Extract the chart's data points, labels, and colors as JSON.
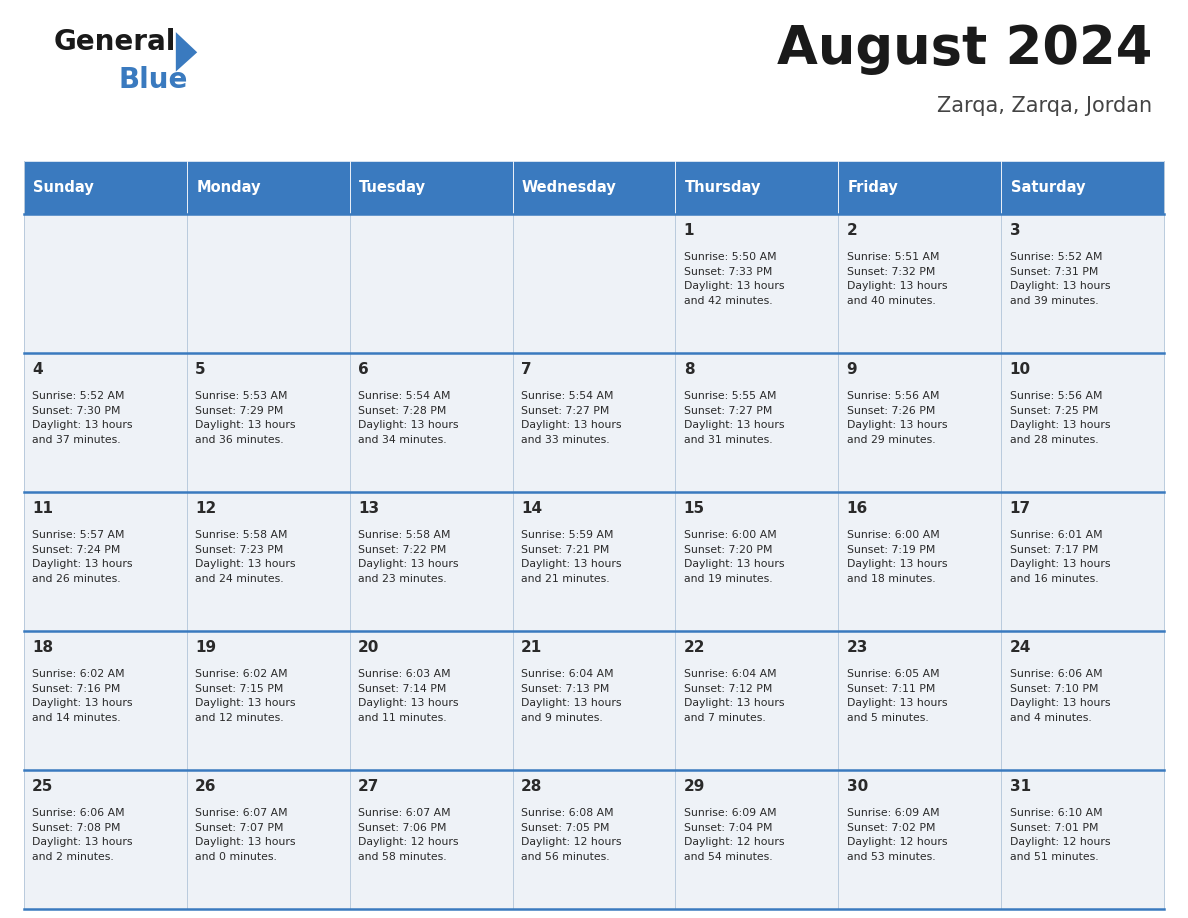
{
  "title": "August 2024",
  "subtitle": "Zarqa, Zarqa, Jordan",
  "header_color": "#3a7abf",
  "header_text_color": "#ffffff",
  "cell_bg_color": "#eef2f7",
  "border_color": "#3a7abf",
  "sep_color": "#b0c4d8",
  "days_of_week": [
    "Sunday",
    "Monday",
    "Tuesday",
    "Wednesday",
    "Thursday",
    "Friday",
    "Saturday"
  ],
  "weeks": [
    [
      {
        "day": null,
        "info": null
      },
      {
        "day": null,
        "info": null
      },
      {
        "day": null,
        "info": null
      },
      {
        "day": null,
        "info": null
      },
      {
        "day": "1",
        "info": "Sunrise: 5:50 AM\nSunset: 7:33 PM\nDaylight: 13 hours\nand 42 minutes."
      },
      {
        "day": "2",
        "info": "Sunrise: 5:51 AM\nSunset: 7:32 PM\nDaylight: 13 hours\nand 40 minutes."
      },
      {
        "day": "3",
        "info": "Sunrise: 5:52 AM\nSunset: 7:31 PM\nDaylight: 13 hours\nand 39 minutes."
      }
    ],
    [
      {
        "day": "4",
        "info": "Sunrise: 5:52 AM\nSunset: 7:30 PM\nDaylight: 13 hours\nand 37 minutes."
      },
      {
        "day": "5",
        "info": "Sunrise: 5:53 AM\nSunset: 7:29 PM\nDaylight: 13 hours\nand 36 minutes."
      },
      {
        "day": "6",
        "info": "Sunrise: 5:54 AM\nSunset: 7:28 PM\nDaylight: 13 hours\nand 34 minutes."
      },
      {
        "day": "7",
        "info": "Sunrise: 5:54 AM\nSunset: 7:27 PM\nDaylight: 13 hours\nand 33 minutes."
      },
      {
        "day": "8",
        "info": "Sunrise: 5:55 AM\nSunset: 7:27 PM\nDaylight: 13 hours\nand 31 minutes."
      },
      {
        "day": "9",
        "info": "Sunrise: 5:56 AM\nSunset: 7:26 PM\nDaylight: 13 hours\nand 29 minutes."
      },
      {
        "day": "10",
        "info": "Sunrise: 5:56 AM\nSunset: 7:25 PM\nDaylight: 13 hours\nand 28 minutes."
      }
    ],
    [
      {
        "day": "11",
        "info": "Sunrise: 5:57 AM\nSunset: 7:24 PM\nDaylight: 13 hours\nand 26 minutes."
      },
      {
        "day": "12",
        "info": "Sunrise: 5:58 AM\nSunset: 7:23 PM\nDaylight: 13 hours\nand 24 minutes."
      },
      {
        "day": "13",
        "info": "Sunrise: 5:58 AM\nSunset: 7:22 PM\nDaylight: 13 hours\nand 23 minutes."
      },
      {
        "day": "14",
        "info": "Sunrise: 5:59 AM\nSunset: 7:21 PM\nDaylight: 13 hours\nand 21 minutes."
      },
      {
        "day": "15",
        "info": "Sunrise: 6:00 AM\nSunset: 7:20 PM\nDaylight: 13 hours\nand 19 minutes."
      },
      {
        "day": "16",
        "info": "Sunrise: 6:00 AM\nSunset: 7:19 PM\nDaylight: 13 hours\nand 18 minutes."
      },
      {
        "day": "17",
        "info": "Sunrise: 6:01 AM\nSunset: 7:17 PM\nDaylight: 13 hours\nand 16 minutes."
      }
    ],
    [
      {
        "day": "18",
        "info": "Sunrise: 6:02 AM\nSunset: 7:16 PM\nDaylight: 13 hours\nand 14 minutes."
      },
      {
        "day": "19",
        "info": "Sunrise: 6:02 AM\nSunset: 7:15 PM\nDaylight: 13 hours\nand 12 minutes."
      },
      {
        "day": "20",
        "info": "Sunrise: 6:03 AM\nSunset: 7:14 PM\nDaylight: 13 hours\nand 11 minutes."
      },
      {
        "day": "21",
        "info": "Sunrise: 6:04 AM\nSunset: 7:13 PM\nDaylight: 13 hours\nand 9 minutes."
      },
      {
        "day": "22",
        "info": "Sunrise: 6:04 AM\nSunset: 7:12 PM\nDaylight: 13 hours\nand 7 minutes."
      },
      {
        "day": "23",
        "info": "Sunrise: 6:05 AM\nSunset: 7:11 PM\nDaylight: 13 hours\nand 5 minutes."
      },
      {
        "day": "24",
        "info": "Sunrise: 6:06 AM\nSunset: 7:10 PM\nDaylight: 13 hours\nand 4 minutes."
      }
    ],
    [
      {
        "day": "25",
        "info": "Sunrise: 6:06 AM\nSunset: 7:08 PM\nDaylight: 13 hours\nand 2 minutes."
      },
      {
        "day": "26",
        "info": "Sunrise: 6:07 AM\nSunset: 7:07 PM\nDaylight: 13 hours\nand 0 minutes."
      },
      {
        "day": "27",
        "info": "Sunrise: 6:07 AM\nSunset: 7:06 PM\nDaylight: 12 hours\nand 58 minutes."
      },
      {
        "day": "28",
        "info": "Sunrise: 6:08 AM\nSunset: 7:05 PM\nDaylight: 12 hours\nand 56 minutes."
      },
      {
        "day": "29",
        "info": "Sunrise: 6:09 AM\nSunset: 7:04 PM\nDaylight: 12 hours\nand 54 minutes."
      },
      {
        "day": "30",
        "info": "Sunrise: 6:09 AM\nSunset: 7:02 PM\nDaylight: 12 hours\nand 53 minutes."
      },
      {
        "day": "31",
        "info": "Sunrise: 6:10 AM\nSunset: 7:01 PM\nDaylight: 12 hours\nand 51 minutes."
      }
    ]
  ]
}
